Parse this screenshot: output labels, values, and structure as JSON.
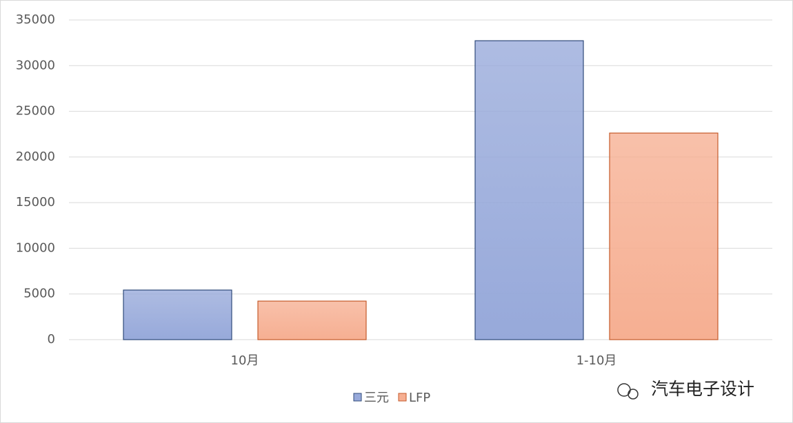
{
  "chart_data": {
    "type": "bar",
    "categories": [
      "10月",
      "1-10月"
    ],
    "series": [
      {
        "name": "三元",
        "color": "#97a9da",
        "values": [
          5430,
          32730
        ]
      },
      {
        "name": "LFP",
        "color": "#f6af92",
        "values": [
          4220,
          22620
        ]
      }
    ],
    "ylim": [
      0,
      35000
    ],
    "yticks": [
      0,
      5000,
      10000,
      15000,
      20000,
      25000,
      30000,
      35000
    ],
    "grid": true,
    "legend": "bottom",
    "annotation": "汽车电子设计"
  }
}
